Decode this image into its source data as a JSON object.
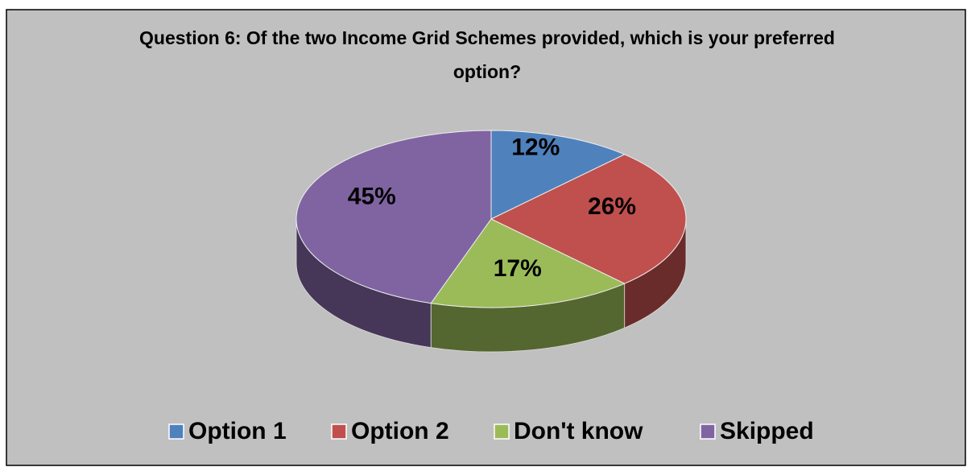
{
  "chart_data": {
    "type": "pie",
    "title": "Question 6: Of the two Income Grid Schemes provided, which is your preferred option?",
    "categories": [
      "Option 1",
      "Option 2",
      "Don't know",
      "Skipped"
    ],
    "values": [
      12,
      26,
      17,
      45
    ],
    "value_labels": [
      "12%",
      "26%",
      "17%",
      "45%"
    ],
    "colors": [
      "#4f81bd",
      "#c0504d",
      "#9bbb59",
      "#8064a2"
    ],
    "legend": "bottom"
  }
}
